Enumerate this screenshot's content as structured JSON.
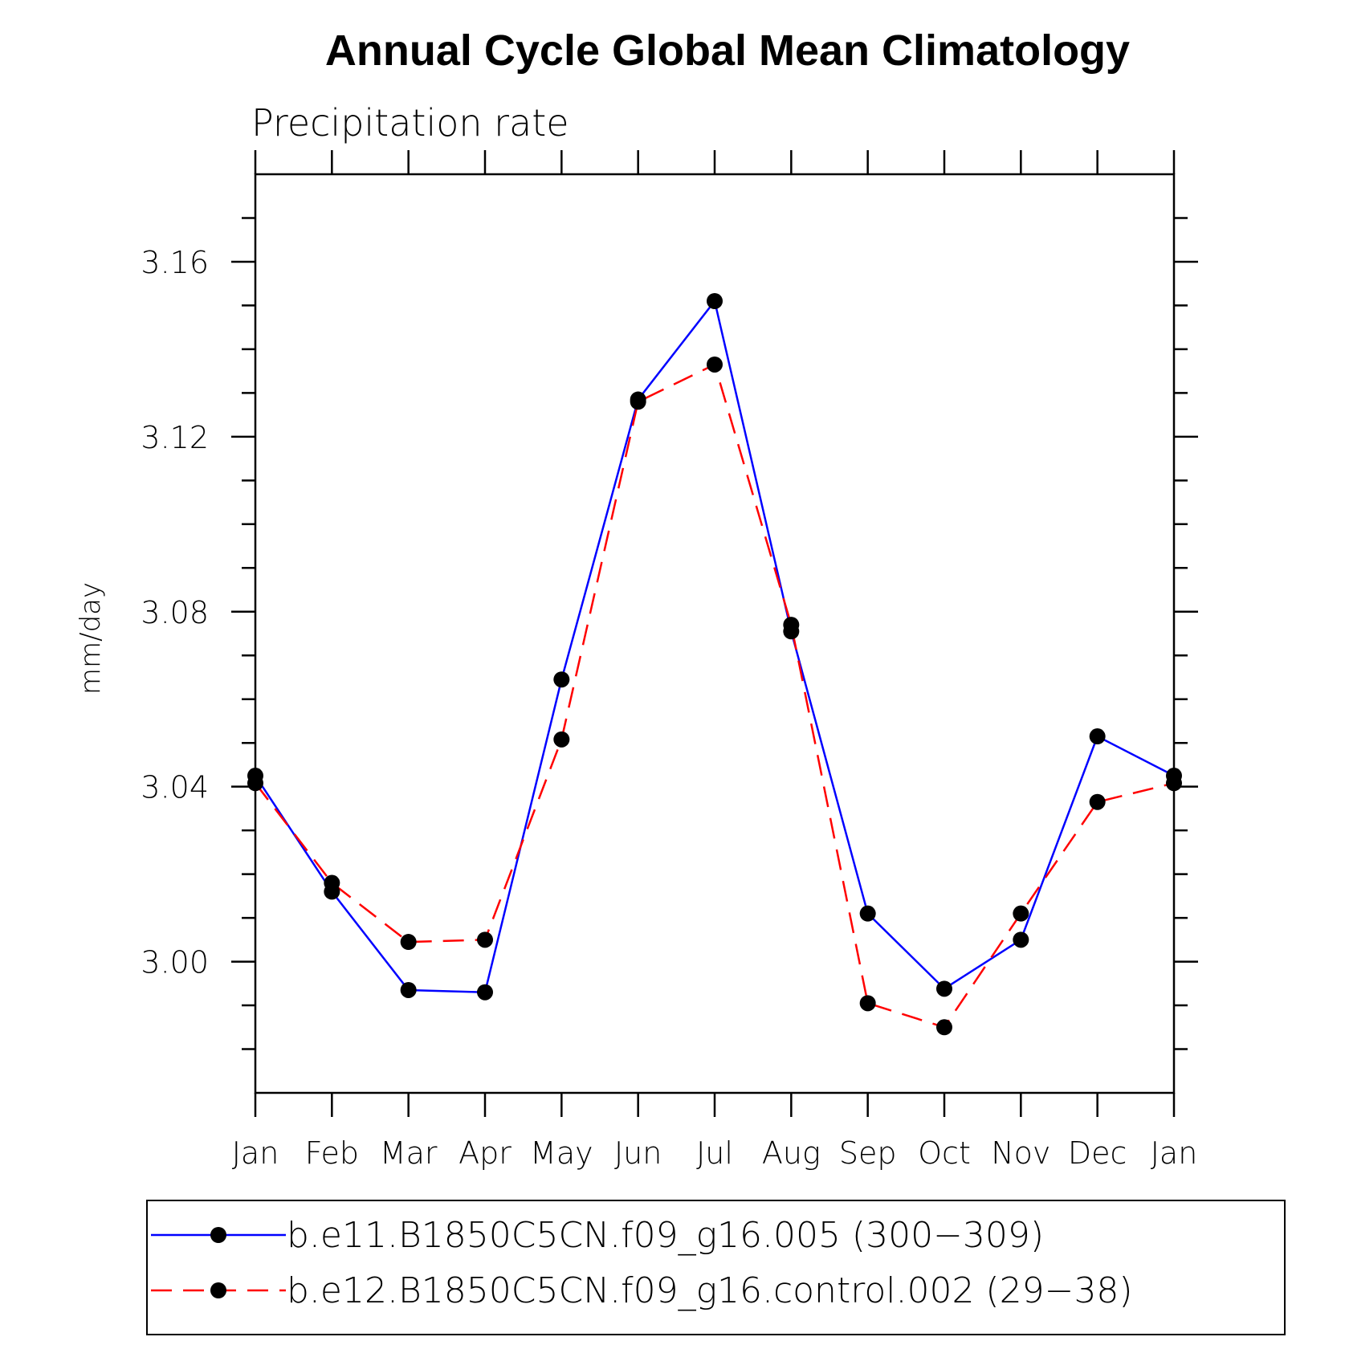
{
  "chart_data": {
    "type": "line",
    "title": "Annual Cycle Global Mean Climatology",
    "subtitle": "Precipitation rate",
    "xlabel": "",
    "ylabel": "mm/day",
    "categories": [
      "Jan",
      "Feb",
      "Mar",
      "Apr",
      "May",
      "Jun",
      "Jul",
      "Aug",
      "Sep",
      "Oct",
      "Nov",
      "Dec",
      "Jan"
    ],
    "ylim": [
      2.97,
      3.18
    ],
    "yticks": [
      "3.00",
      "3.04",
      "3.08",
      "3.12",
      "3.16"
    ],
    "grid": false,
    "legend_position": "bottom",
    "series": [
      {
        "name": "b.e11.B1850C5CN.f09_g16.005 (300−309)",
        "color": "#0000ff",
        "dash": "solid",
        "values": [
          3.0425,
          3.016,
          2.9935,
          2.993,
          3.0645,
          3.1285,
          3.151,
          3.0755,
          3.011,
          2.9938,
          3.005,
          3.0515,
          3.0425
        ]
      },
      {
        "name": "b.e12.B1850C5CN.f09_g16.control.002 (29−38)",
        "color": "#ff0000",
        "dash": "dashed",
        "values": [
          3.0408,
          3.018,
          3.0045,
          3.005,
          3.0508,
          3.128,
          3.1365,
          3.077,
          2.9905,
          2.985,
          3.011,
          3.0365,
          3.0408
        ]
      }
    ]
  }
}
